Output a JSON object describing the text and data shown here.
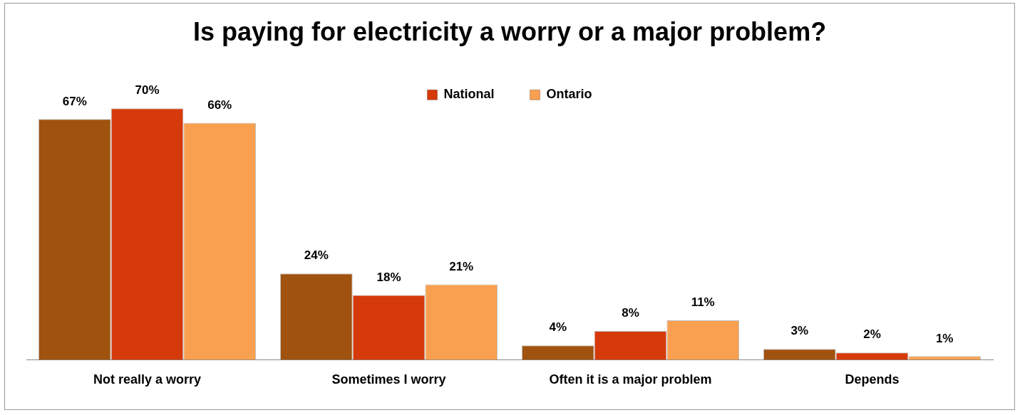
{
  "chart_data": {
    "type": "bar",
    "title": "Is paying for electricity a worry or a major problem?",
    "categories": [
      "Not really a worry",
      "Sometimes I worry",
      "Often it is a major problem",
      "Depends"
    ],
    "series": [
      {
        "color": "#a0520f",
        "values": [
          67,
          24,
          4,
          3
        ],
        "value_labels": [
          "67%",
          "24%",
          "4%",
          "3%"
        ]
      },
      {
        "name": "National",
        "color": "#d63a0a",
        "values": [
          70,
          18,
          8,
          2
        ],
        "value_labels": [
          "70%",
          "18%",
          "8%",
          "2%"
        ]
      },
      {
        "name": "Ontario",
        "color": "#f9a050",
        "values": [
          66,
          21,
          11,
          1
        ],
        "value_labels": [
          "66%",
          "21%",
          "11%",
          "1%"
        ]
      }
    ],
    "legend": "top"
  }
}
